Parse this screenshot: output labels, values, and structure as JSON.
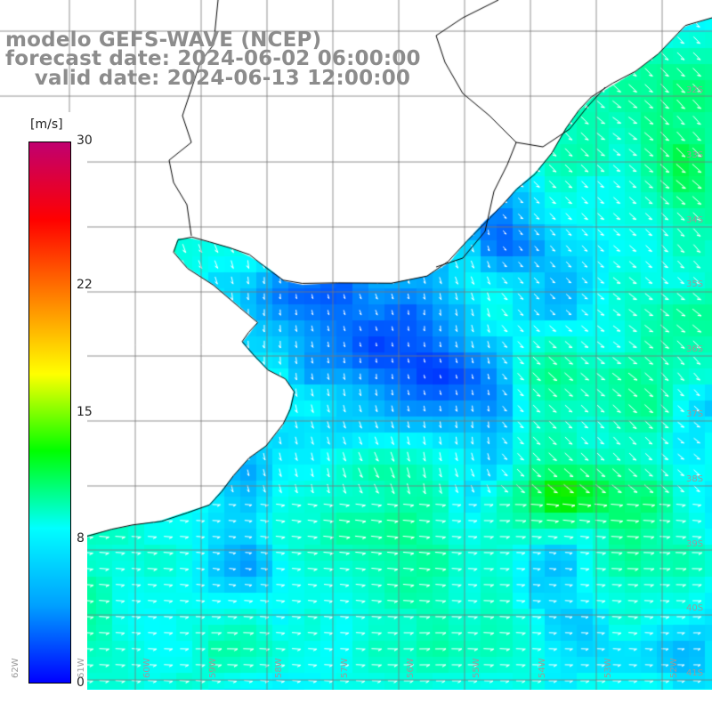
{
  "title": {
    "line1": "modelo GEFS-WAVE (NCEP)",
    "line2": "forecast date: 2024-06-02 06:00:00",
    "line3": "    valid date: 2024-06-13 12:00:00"
  },
  "colorbar": {
    "unit": "[m/s]",
    "min": 0,
    "max": 30,
    "ticks": [
      "30",
      "22",
      "15",
      "8",
      "0"
    ],
    "tick_values": [
      30,
      22,
      15,
      8,
      0
    ],
    "colors": [
      "#0000ff",
      "#00a0ff",
      "#00ffff",
      "#00ff00",
      "#ffff00",
      "#ff8000",
      "#ff0000",
      "#c00070"
    ]
  },
  "map": {
    "lat_labels": [
      "32S",
      "33S",
      "34S",
      "35S",
      "36S",
      "37S",
      "38S",
      "39S",
      "40S",
      "41S"
    ],
    "lon_labels": [
      "62W",
      "61W",
      "60W",
      "59W",
      "58W",
      "57W",
      "56W",
      "55W",
      "54W",
      "53W",
      "52W"
    ],
    "land_color": "#ffffff",
    "coast_color": "#000000",
    "grid_color": "#777777",
    "arrow_color": "#ffffff"
  }
}
